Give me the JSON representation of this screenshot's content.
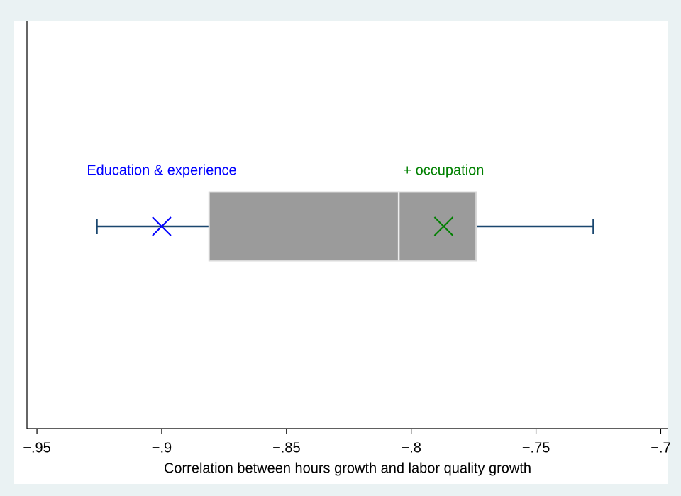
{
  "chart_data": {
    "type": "box",
    "xlabel": "Correlation between hours growth and labor quality growth",
    "xlim": [
      -0.954,
      -0.697
    ],
    "xticks": [
      {
        "value": -0.95,
        "label": "−.95"
      },
      {
        "value": -0.9,
        "label": "−.9"
      },
      {
        "value": -0.85,
        "label": "−.85"
      },
      {
        "value": -0.8,
        "label": "−.8"
      },
      {
        "value": -0.75,
        "label": "−.75"
      },
      {
        "value": -0.7,
        "label": "−.7"
      }
    ],
    "box": {
      "whisker_low": -0.926,
      "q1": -0.881,
      "median": -0.805,
      "q3": -0.774,
      "whisker_high": -0.727,
      "color": "#9b9b9b",
      "whisker_color": "#1a476f"
    },
    "points": [
      {
        "name": "Education & experience",
        "value": -0.9,
        "color": "#0000ff"
      },
      {
        "name": "+ occupation",
        "value": -0.787,
        "color": "#008000"
      }
    ]
  }
}
